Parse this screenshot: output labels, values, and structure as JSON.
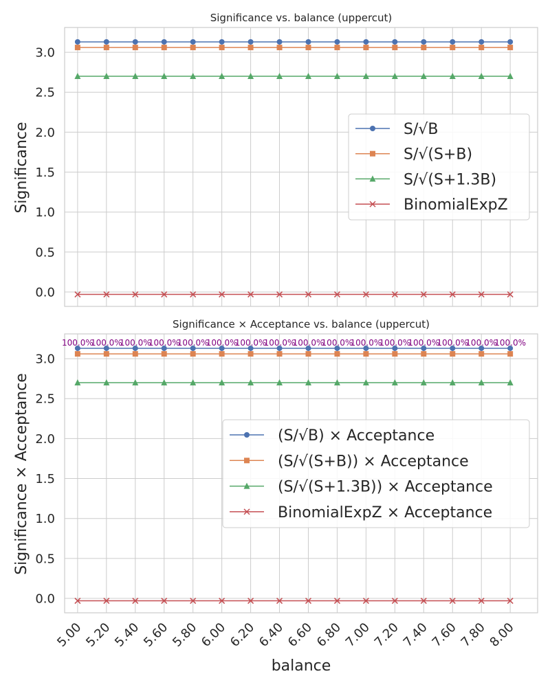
{
  "chart_data": [
    {
      "type": "line",
      "title": "Significance vs. balance (uppercut)",
      "xlabel": "",
      "ylabel": "Significance",
      "x": [
        5.0,
        5.2,
        5.4,
        5.6,
        5.8,
        6.0,
        6.2,
        6.4,
        6.6,
        6.8,
        7.0,
        7.2,
        7.4,
        7.6,
        7.8,
        8.0
      ],
      "xlim": [
        4.91,
        8.19
      ],
      "ylim": [
        -0.18,
        3.31
      ],
      "yticks": [
        "0.0",
        "0.5",
        "1.0",
        "1.5",
        "2.0",
        "2.5",
        "3.0"
      ],
      "grid": true,
      "legend_position": "center-right",
      "series": [
        {
          "name": "S/√B",
          "color": "#4c72b0",
          "marker": "circle",
          "values": [
            3.13,
            3.13,
            3.13,
            3.13,
            3.13,
            3.13,
            3.13,
            3.13,
            3.13,
            3.13,
            3.13,
            3.13,
            3.13,
            3.13,
            3.13,
            3.13
          ]
        },
        {
          "name": "S/√(S+B)",
          "color": "#dd8452",
          "marker": "square",
          "values": [
            3.06,
            3.06,
            3.06,
            3.06,
            3.06,
            3.06,
            3.06,
            3.06,
            3.06,
            3.06,
            3.06,
            3.06,
            3.06,
            3.06,
            3.06,
            3.06
          ]
        },
        {
          "name": "S/√(S+1.3B)",
          "color": "#55a868",
          "marker": "triangle",
          "values": [
            2.7,
            2.7,
            2.7,
            2.7,
            2.7,
            2.7,
            2.7,
            2.7,
            2.7,
            2.7,
            2.7,
            2.7,
            2.7,
            2.7,
            2.7,
            2.7
          ]
        },
        {
          "name": "BinomialExpZ",
          "color": "#c44e52",
          "marker": "x",
          "values": [
            -0.03,
            -0.03,
            -0.03,
            -0.03,
            -0.03,
            -0.03,
            -0.03,
            -0.03,
            -0.03,
            -0.03,
            -0.03,
            -0.03,
            -0.03,
            -0.03,
            -0.03,
            -0.03
          ]
        }
      ]
    },
    {
      "type": "line",
      "title": "Significance × Acceptance vs. balance (uppercut)",
      "xlabel": "balance",
      "ylabel": "Significance × Acceptance",
      "x": [
        5.0,
        5.2,
        5.4,
        5.6,
        5.8,
        6.0,
        6.2,
        6.4,
        6.6,
        6.8,
        7.0,
        7.2,
        7.4,
        7.6,
        7.8,
        8.0
      ],
      "xticks": [
        "5.00",
        "5.20",
        "5.40",
        "5.60",
        "5.80",
        "6.00",
        "6.20",
        "6.40",
        "6.60",
        "6.80",
        "7.00",
        "7.20",
        "7.40",
        "7.60",
        "7.80",
        "8.00"
      ],
      "xlim": [
        4.91,
        8.19
      ],
      "ylim": [
        -0.18,
        3.31
      ],
      "yticks": [
        "0.0",
        "0.5",
        "1.0",
        "1.5",
        "2.0",
        "2.5",
        "3.0"
      ],
      "grid": true,
      "legend_position": "center-right",
      "annotations": [
        "100.0%",
        "100.0%",
        "100.0%",
        "100.0%",
        "100.0%",
        "100.0%",
        "100.0%",
        "100.0%",
        "100.0%",
        "100.0%",
        "100.0%",
        "100.0%",
        "100.0%",
        "100.0%",
        "100.0%",
        "100.0%"
      ],
      "annotation_color": "#800080",
      "series": [
        {
          "name": "(S/√B) × Acceptance",
          "color": "#4c72b0",
          "marker": "circle",
          "values": [
            3.13,
            3.13,
            3.13,
            3.13,
            3.13,
            3.13,
            3.13,
            3.13,
            3.13,
            3.13,
            3.13,
            3.13,
            3.13,
            3.13,
            3.13,
            3.13
          ]
        },
        {
          "name": "(S/√(S+B)) × Acceptance",
          "color": "#dd8452",
          "marker": "square",
          "values": [
            3.06,
            3.06,
            3.06,
            3.06,
            3.06,
            3.06,
            3.06,
            3.06,
            3.06,
            3.06,
            3.06,
            3.06,
            3.06,
            3.06,
            3.06,
            3.06
          ]
        },
        {
          "name": "(S/√(S+1.3B)) × Acceptance",
          "color": "#55a868",
          "marker": "triangle",
          "values": [
            2.7,
            2.7,
            2.7,
            2.7,
            2.7,
            2.7,
            2.7,
            2.7,
            2.7,
            2.7,
            2.7,
            2.7,
            2.7,
            2.7,
            2.7,
            2.7
          ]
        },
        {
          "name": "BinomialExpZ × Acceptance",
          "color": "#c44e52",
          "marker": "x",
          "values": [
            -0.03,
            -0.03,
            -0.03,
            -0.03,
            -0.03,
            -0.03,
            -0.03,
            -0.03,
            -0.03,
            -0.03,
            -0.03,
            -0.03,
            -0.03,
            -0.03,
            -0.03,
            -0.03
          ]
        }
      ]
    }
  ]
}
